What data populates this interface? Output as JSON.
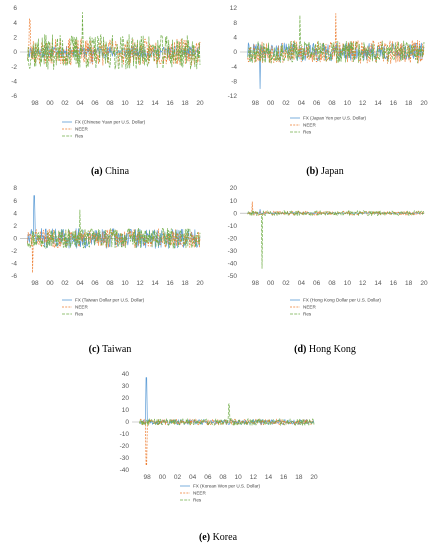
{
  "colors": {
    "fx": "#5b9bd5",
    "neer": "#ed7d31",
    "res": "#70ad47",
    "zero": "#a6a6a6"
  },
  "chart_data": [
    {
      "type": "line",
      "id": "china",
      "caption_letter": "(a)",
      "caption_text": " China",
      "x_ticks": [
        "98",
        "00",
        "02",
        "04",
        "06",
        "08",
        "10",
        "12",
        "14",
        "16",
        "18",
        "20"
      ],
      "y_ticks": [
        6,
        4,
        2,
        0,
        -2,
        -4,
        -6
      ],
      "ylim": [
        -6,
        6
      ],
      "legend": [
        "FX (Chinese Yuan per U.S. Dollar)",
        "NEER",
        "Res"
      ],
      "series": [
        {
          "key": "fx",
          "amp": 0.8,
          "spike_year": 2005.6,
          "spike_val": -1.5,
          "seed": 11
        },
        {
          "key": "neer",
          "amp": 1.8,
          "spike_year": 1997.3,
          "spike_val": 4.5,
          "seed": 23
        },
        {
          "key": "res",
          "amp": 2.4,
          "spike_year": 2004.3,
          "spike_val": 5.4,
          "seed": 37
        }
      ]
    },
    {
      "type": "line",
      "id": "japan",
      "caption_letter": "(b)",
      "caption_text": " Japan",
      "x_ticks": [
        "98",
        "00",
        "02",
        "04",
        "06",
        "08",
        "10",
        "12",
        "14",
        "16",
        "18",
        "20"
      ],
      "y_ticks": [
        12,
        8,
        4,
        0,
        -4,
        -8,
        -12
      ],
      "ylim": [
        -12,
        12
      ],
      "legend": [
        "FX (Japan Yen per U.S. Dollar)",
        "NEER",
        "Res"
      ],
      "series": [
        {
          "key": "fx",
          "amp": 2.5,
          "spike_year": 1998.6,
          "spike_val": -10,
          "seed": 41
        },
        {
          "key": "neer",
          "amp": 3.2,
          "spike_year": 2008.5,
          "spike_val": 10.5,
          "seed": 53
        },
        {
          "key": "res",
          "amp": 3.0,
          "spike_year": 2003.8,
          "spike_val": 10,
          "seed": 67
        }
      ]
    },
    {
      "type": "line",
      "id": "taiwan",
      "caption_letter": "(c)",
      "caption_text": " Taiwan",
      "x_ticks": [
        "98",
        "00",
        "02",
        "04",
        "06",
        "08",
        "10",
        "12",
        "14",
        "16",
        "18",
        "20"
      ],
      "y_ticks": [
        8,
        6,
        4,
        2,
        0,
        -2,
        -4,
        -6
      ],
      "ylim": [
        -6,
        8
      ],
      "legend": [
        "FX (Taiwan Dollar per U.S. Dollar)",
        "NEER",
        "Res"
      ],
      "series": [
        {
          "key": "fx",
          "amp": 1.6,
          "spike_year": 1997.9,
          "spike_val": 6.8,
          "seed": 71
        },
        {
          "key": "neer",
          "amp": 1.5,
          "spike_year": 1997.7,
          "spike_val": -5.5,
          "seed": 83
        },
        {
          "key": "res",
          "amp": 1.6,
          "spike_year": 2004.0,
          "spike_val": 4.5,
          "seed": 97
        }
      ]
    },
    {
      "type": "line",
      "id": "hongkong",
      "caption_letter": "(d)",
      "caption_text": " Hong Kong",
      "x_ticks": [
        "98",
        "00",
        "02",
        "04",
        "06",
        "08",
        "10",
        "12",
        "14",
        "16",
        "18",
        "20"
      ],
      "y_ticks": [
        20,
        10,
        0,
        -10,
        -20,
        -30,
        -40,
        -50
      ],
      "ylim": [
        -50,
        20
      ],
      "legend": [
        "FX (Hong Kong Dollar per U.S. Dollar)",
        "NEER",
        "Res"
      ],
      "series": [
        {
          "key": "fx",
          "amp": 0.4,
          "spike_year": 1998.6,
          "spike_val": 3,
          "seed": 101
        },
        {
          "key": "neer",
          "amp": 1.6,
          "spike_year": 1997.6,
          "spike_val": 9,
          "seed": 113
        },
        {
          "key": "res",
          "amp": 2.0,
          "spike_year": 1998.9,
          "spike_val": -44,
          "seed": 127
        }
      ]
    },
    {
      "type": "line",
      "id": "korea",
      "caption_letter": "(e)",
      "caption_text": " Korea",
      "x_ticks": [
        "98",
        "00",
        "02",
        "04",
        "06",
        "08",
        "10",
        "12",
        "14",
        "16",
        "18",
        "20"
      ],
      "y_ticks": [
        40,
        30,
        20,
        10,
        0,
        -10,
        -20,
        -30,
        -40
      ],
      "ylim": [
        -40,
        40
      ],
      "legend": [
        "FX (Korean Won per U.S. Dollar)",
        "NEER",
        "Res"
      ],
      "series": [
        {
          "key": "fx",
          "amp": 2.2,
          "spike_year": 1997.9,
          "spike_val": 37,
          "seed": 131
        },
        {
          "key": "neer",
          "amp": 2.4,
          "spike_year": 1997.9,
          "spike_val": -36,
          "seed": 139
        },
        {
          "key": "res",
          "amp": 2.8,
          "spike_year": 2008.8,
          "spike_val": 15,
          "seed": 149
        }
      ]
    }
  ]
}
